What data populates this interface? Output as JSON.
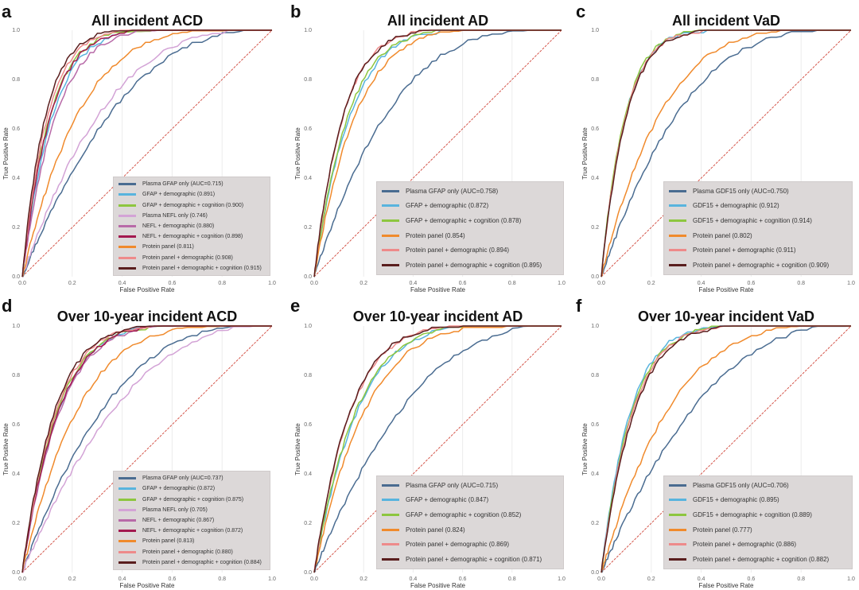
{
  "figure": {
    "xlabel": "False Positive Rate",
    "ylabel": "True Positive Rate"
  },
  "chart_data": [
    {
      "type": "line",
      "panel": "a",
      "title": "All incident ACD",
      "xlabel": "False Positive Rate",
      "ylabel": "True Positive Rate",
      "xlim": [
        0,
        1
      ],
      "ylim": [
        0,
        1
      ],
      "xticks": [
        "0.0",
        "0.2",
        "0.4",
        "0.6",
        "0.8",
        "1.0"
      ],
      "yticks": [
        "0.0",
        "0.2",
        "0.4",
        "0.6",
        "0.8",
        "1.0"
      ],
      "grid": true,
      "legend_position": "bottom-right",
      "reference_line": {
        "name": "chance",
        "color": "#d0463a"
      },
      "series": [
        {
          "name": "Plasma GFAP only (AUC=0.715)",
          "auc": 0.715,
          "color": "#4a6c91"
        },
        {
          "name": "GFAP + demographic (0.891)",
          "auc": 0.891,
          "color": "#58b4de"
        },
        {
          "name": "GFAP + demographic + cognition (0.900)",
          "auc": 0.9,
          "color": "#8dc63f"
        },
        {
          "name": "Plasma NEFL only (0.746)",
          "auc": 0.746,
          "color": "#d3a3d6"
        },
        {
          "name": "NEFL + demographic (0.880)",
          "auc": 0.88,
          "color": "#b86aa8"
        },
        {
          "name": "NEFL + demographic + cognition (0.898)",
          "auc": 0.898,
          "color": "#a3194f"
        },
        {
          "name": "Protein panel (0.811)",
          "auc": 0.811,
          "color": "#f08a2c"
        },
        {
          "name": "Protein panel + demographic (0.908)",
          "auc": 0.908,
          "color": "#ee8a8a"
        },
        {
          "name": "Protein panel + demographic + cognition (0.915)",
          "auc": 0.915,
          "color": "#5a1e1e"
        }
      ]
    },
    {
      "type": "line",
      "panel": "b",
      "title": "All incident AD",
      "xlabel": "False Positive Rate",
      "ylabel": "True Positive Rate",
      "xlim": [
        0,
        1
      ],
      "ylim": [
        0,
        1
      ],
      "xticks": [
        "0.0",
        "0.2",
        "0.4",
        "0.6",
        "0.8",
        "1.0"
      ],
      "yticks": [
        "0.0",
        "0.2",
        "0.4",
        "0.6",
        "0.8",
        "1.0"
      ],
      "grid": true,
      "legend_position": "bottom-right",
      "reference_line": {
        "name": "chance",
        "color": "#d0463a"
      },
      "series": [
        {
          "name": "Plasma GFAP only (AUC=0.758)",
          "auc": 0.758,
          "color": "#4a6c91"
        },
        {
          "name": "GFAP + demographic (0.872)",
          "auc": 0.872,
          "color": "#58b4de"
        },
        {
          "name": "GFAP + demographic + cognition (0.878)",
          "auc": 0.878,
          "color": "#8dc63f"
        },
        {
          "name": "Protein panel (0.854)",
          "auc": 0.854,
          "color": "#f08a2c"
        },
        {
          "name": "Protein panel + demographic (0.894)",
          "auc": 0.894,
          "color": "#ee8a8a"
        },
        {
          "name": "Protein panel + demographic + cognition (0.895)",
          "auc": 0.895,
          "color": "#5a1e1e"
        }
      ]
    },
    {
      "type": "line",
      "panel": "c",
      "title": "All incident VaD",
      "xlabel": "False Positive Rate",
      "ylabel": "True Positive Rate",
      "xlim": [
        0,
        1
      ],
      "ylim": [
        0,
        1
      ],
      "xticks": [
        "0.0",
        "0.2",
        "0.4",
        "0.6",
        "0.8",
        "1.0"
      ],
      "yticks": [
        "0.0",
        "0.2",
        "0.4",
        "0.6",
        "0.8",
        "1.0"
      ],
      "grid": true,
      "legend_position": "bottom-right",
      "reference_line": {
        "name": "chance",
        "color": "#d0463a"
      },
      "series": [
        {
          "name": "Plasma GDF15 only (AUC=0.750)",
          "auc": 0.75,
          "color": "#4a6c91"
        },
        {
          "name": "GDF15 + demographic (0.912)",
          "auc": 0.912,
          "color": "#58b4de"
        },
        {
          "name": "GDF15 + demographic + cognition (0.914)",
          "auc": 0.914,
          "color": "#8dc63f"
        },
        {
          "name": "Protein panel (0.802)",
          "auc": 0.802,
          "color": "#f08a2c"
        },
        {
          "name": "Protein panel + demographic (0.911)",
          "auc": 0.911,
          "color": "#ee8a8a"
        },
        {
          "name": "Protein panel + demographic + cognition (0.909)",
          "auc": 0.909,
          "color": "#5a1e1e"
        }
      ]
    },
    {
      "type": "line",
      "panel": "d",
      "title": "Over 10-year incident ACD",
      "xlabel": "False Positive Rate",
      "ylabel": "True Positive Rate",
      "xlim": [
        0,
        1
      ],
      "ylim": [
        0,
        1
      ],
      "xticks": [
        "0.0",
        "0.2",
        "0.4",
        "0.6",
        "0.8",
        "1.0"
      ],
      "yticks": [
        "0.0",
        "0.2",
        "0.4",
        "0.6",
        "0.8",
        "1.0"
      ],
      "grid": true,
      "legend_position": "bottom-right",
      "reference_line": {
        "name": "chance",
        "color": "#d0463a"
      },
      "series": [
        {
          "name": "Plasma GFAP only (AUC=0.737)",
          "auc": 0.737,
          "color": "#4a6c91"
        },
        {
          "name": "GFAP + demographic (0.872)",
          "auc": 0.872,
          "color": "#58b4de"
        },
        {
          "name": "GFAP + demographic + cognition (0.875)",
          "auc": 0.875,
          "color": "#8dc63f"
        },
        {
          "name": "Plasma NEFL only (0.705)",
          "auc": 0.705,
          "color": "#d3a3d6"
        },
        {
          "name": "NEFL + demographic (0.867)",
          "auc": 0.867,
          "color": "#b86aa8"
        },
        {
          "name": "NEFL + demographic + cognition (0.872)",
          "auc": 0.872,
          "color": "#a3194f"
        },
        {
          "name": "Protein panel (0.813)",
          "auc": 0.813,
          "color": "#f08a2c"
        },
        {
          "name": "Protein panel + demographic (0.880)",
          "auc": 0.88,
          "color": "#ee8a8a"
        },
        {
          "name": "Protein panel + demographic + cognition (0.884)",
          "auc": 0.884,
          "color": "#5a1e1e"
        }
      ]
    },
    {
      "type": "line",
      "panel": "e",
      "title": "Over 10-year incident AD",
      "xlabel": "False Positive Rate",
      "ylabel": "True Positive Rate",
      "xlim": [
        0,
        1
      ],
      "ylim": [
        0,
        1
      ],
      "xticks": [
        "0.0",
        "0.2",
        "0.4",
        "0.6",
        "0.8",
        "1.0"
      ],
      "yticks": [
        "0.0",
        "0.2",
        "0.4",
        "0.6",
        "0.8",
        "1.0"
      ],
      "grid": true,
      "legend_position": "bottom-right",
      "reference_line": {
        "name": "chance",
        "color": "#d0463a"
      },
      "series": [
        {
          "name": "Plasma GFAP only (AUC=0.715)",
          "auc": 0.715,
          "color": "#4a6c91"
        },
        {
          "name": "GFAP + demographic (0.847)",
          "auc": 0.847,
          "color": "#58b4de"
        },
        {
          "name": "GFAP + demographic + cognition (0.852)",
          "auc": 0.852,
          "color": "#8dc63f"
        },
        {
          "name": "Protein panel (0.824)",
          "auc": 0.824,
          "color": "#f08a2c"
        },
        {
          "name": "Protein panel + demographic (0.869)",
          "auc": 0.869,
          "color": "#ee8a8a"
        },
        {
          "name": "Protein panel + demographic + cognition (0.871)",
          "auc": 0.871,
          "color": "#5a1e1e"
        }
      ]
    },
    {
      "type": "line",
      "panel": "f",
      "title": "Over 10-year incident VaD",
      "xlabel": "False Positive Rate",
      "ylabel": "True Positive Rate",
      "xlim": [
        0,
        1
      ],
      "ylim": [
        0,
        1
      ],
      "xticks": [
        "0.0",
        "0.2",
        "0.4",
        "0.6",
        "0.8",
        "1.0"
      ],
      "yticks": [
        "0.0",
        "0.2",
        "0.4",
        "0.6",
        "0.8",
        "1.0"
      ],
      "grid": true,
      "legend_position": "bottom-right",
      "reference_line": {
        "name": "chance",
        "color": "#d0463a"
      },
      "series": [
        {
          "name": "Plasma GDF15 only (AUC=0.706)",
          "auc": 0.706,
          "color": "#4a6c91"
        },
        {
          "name": "GDF15 + demographic (0.895)",
          "auc": 0.895,
          "color": "#58b4de"
        },
        {
          "name": "GDF15 + demographic + cognition (0.889)",
          "auc": 0.889,
          "color": "#8dc63f"
        },
        {
          "name": "Protein panel (0.777)",
          "auc": 0.777,
          "color": "#f08a2c"
        },
        {
          "name": "Protein panel + demographic (0.886)",
          "auc": 0.886,
          "color": "#ee8a8a"
        },
        {
          "name": "Protein panel + demographic + cognition (0.882)",
          "auc": 0.882,
          "color": "#5a1e1e"
        }
      ]
    }
  ]
}
